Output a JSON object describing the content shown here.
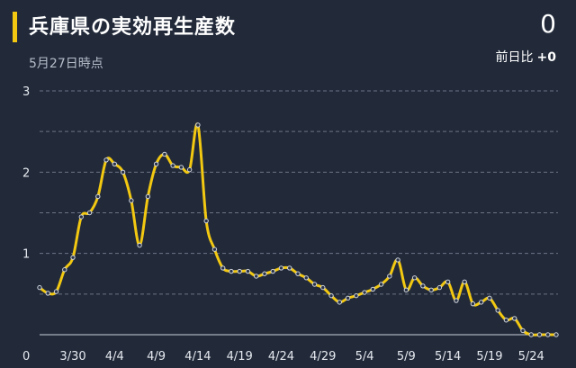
{
  "header": {
    "title": "兵庫県の実効再生産数",
    "updated": "5月27日時点",
    "current_value": "0",
    "diff_label": "前日比",
    "diff_value": "+0"
  },
  "colors": {
    "background": "#222a3a",
    "accent": "#f2c811",
    "line": "#f2c811",
    "grid": "#6b7385"
  },
  "chart_data": {
    "type": "line",
    "title": "兵庫県の実効再生産数",
    "xlabel": "",
    "ylabel": "",
    "ylim": [
      0,
      3
    ],
    "y_ticks": [
      0,
      1,
      2,
      3
    ],
    "x_tick_labels": [
      "3/30",
      "4/4",
      "4/9",
      "4/14",
      "4/19",
      "4/24",
      "4/29",
      "5/4",
      "5/9",
      "5/14",
      "5/19",
      "5/24"
    ],
    "x_tick_index": [
      4,
      9,
      14,
      19,
      24,
      29,
      34,
      39,
      44,
      49,
      54,
      59
    ],
    "start_label": "3/26",
    "x": [
      "3/26",
      "3/27",
      "3/28",
      "3/29",
      "3/30",
      "3/31",
      "4/1",
      "4/2",
      "4/3",
      "4/4",
      "4/5",
      "4/6",
      "4/7",
      "4/8",
      "4/9",
      "4/10",
      "4/11",
      "4/12",
      "4/13",
      "4/14",
      "4/15",
      "4/16",
      "4/17",
      "4/18",
      "4/19",
      "4/20",
      "4/21",
      "4/22",
      "4/23",
      "4/24",
      "4/25",
      "4/26",
      "4/27",
      "4/28",
      "4/29",
      "4/30",
      "5/1",
      "5/2",
      "5/3",
      "5/4",
      "5/5",
      "5/6",
      "5/7",
      "5/8",
      "5/9",
      "5/10",
      "5/11",
      "5/12",
      "5/13",
      "5/14",
      "5/15",
      "5/16",
      "5/17",
      "5/18",
      "5/19",
      "5/20",
      "5/21",
      "5/22",
      "5/23",
      "5/24",
      "5/25",
      "5/26",
      "5/27"
    ],
    "series": [
      {
        "values": [
          0.58,
          0.51,
          0.53,
          0.8,
          0.95,
          1.45,
          1.5,
          1.7,
          2.15,
          2.1,
          2.0,
          1.65,
          1.1,
          1.7,
          2.1,
          2.22,
          2.08,
          2.06,
          2.03,
          2.58,
          1.4,
          1.05,
          0.82,
          0.78,
          0.78,
          0.78,
          0.72,
          0.75,
          0.78,
          0.82,
          0.82,
          0.75,
          0.7,
          0.62,
          0.58,
          0.48,
          0.4,
          0.45,
          0.48,
          0.52,
          0.56,
          0.62,
          0.72,
          0.92,
          0.55,
          0.7,
          0.6,
          0.55,
          0.58,
          0.65,
          0.42,
          0.65,
          0.38,
          0.4,
          0.45,
          0.3,
          0.18,
          0.2,
          0.05,
          0.0,
          0.0,
          0.0,
          0.0
        ]
      }
    ]
  }
}
